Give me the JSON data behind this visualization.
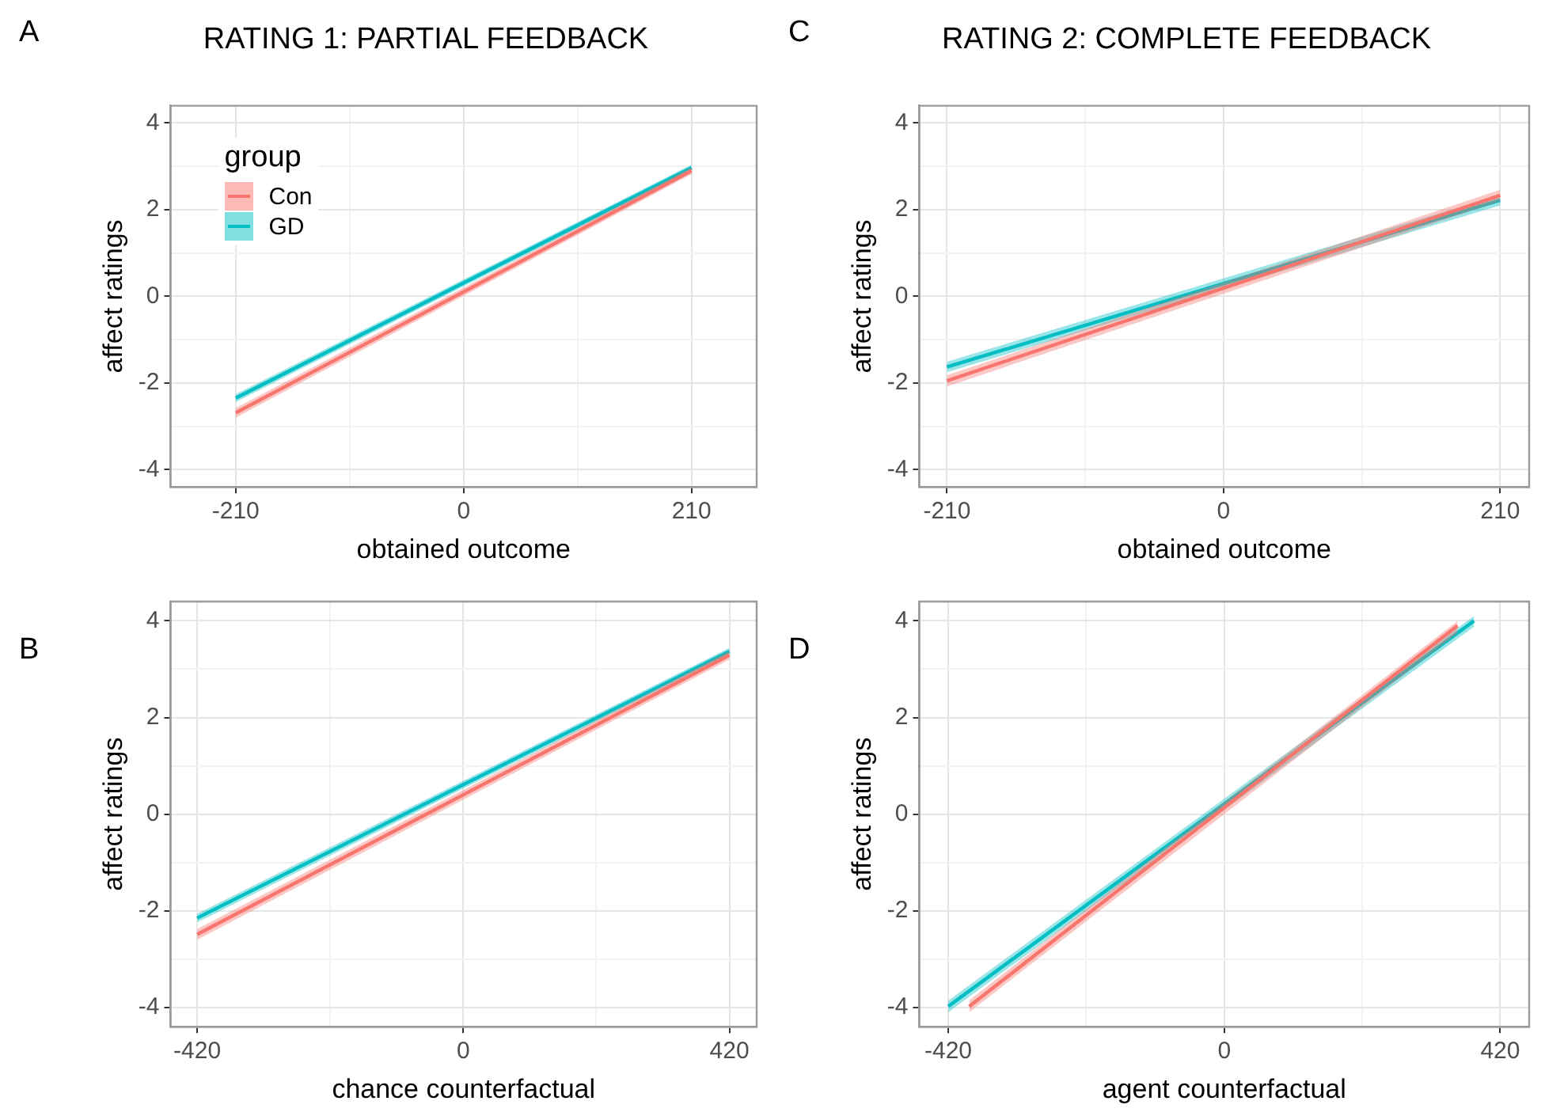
{
  "chart_data": [
    {
      "type": "line",
      "title": "RATING 1: PARTIAL FEEDBACK",
      "annotations": [
        "A"
      ],
      "xlabel": "obtained outcome",
      "ylabel": "affect ratings",
      "legend_title": "group",
      "legend": "top left",
      "marker": "none",
      "grid": true,
      "xlim": [
        -270,
        270
      ],
      "xticks": [
        -210,
        {
          "value": -105,
          "label": null
        },
        0,
        {
          "value": 105,
          "label": null
        },
        210
      ],
      "ylim": [
        -4.4,
        4.4
      ],
      "yticks": [
        -4,
        {
          "value": -3,
          "label": null
        },
        -2,
        {
          "value": -1,
          "label": null
        },
        0,
        {
          "value": 1,
          "label": null
        },
        2,
        {
          "value": 3,
          "label": null
        },
        4
      ],
      "series": [
        {
          "name": "Con",
          "color": "#f8766d",
          "x": [
            -210,
            210
          ],
          "values": [
            -2.69,
            2.9
          ],
          "lower": [
            -2.8,
            2.82
          ],
          "upper": [
            -2.58,
            2.98
          ]
        },
        {
          "name": "GD",
          "color": "#00bfc4",
          "x": [
            -210,
            210
          ],
          "values": [
            -2.35,
            2.97
          ],
          "lower": [
            -2.44,
            2.9
          ],
          "upper": [
            -2.26,
            3.04
          ]
        }
      ]
    },
    {
      "type": "line",
      "title": "RATING 2: COMPLETE FEEDBACK",
      "annotations": [
        "C"
      ],
      "xlabel": "obtained outcome",
      "ylabel": "affect ratings",
      "marker": "none",
      "grid": true,
      "xlim": [
        -231,
        232
      ],
      "xticks": [
        -210,
        {
          "value": -105,
          "label": null
        },
        0,
        {
          "value": 105,
          "label": null
        },
        210
      ],
      "ylim": [
        -4.4,
        4.4
      ],
      "yticks": [
        -4,
        {
          "value": -3,
          "label": null
        },
        -2,
        {
          "value": -1,
          "label": null
        },
        0,
        {
          "value": 1,
          "label": null
        },
        2,
        {
          "value": 3,
          "label": null
        },
        4
      ],
      "series": [
        {
          "color": "#f8766d",
          "x": [
            -210,
            210
          ],
          "values": [
            -1.95,
            2.33
          ],
          "lower": [
            -2.08,
            2.2
          ],
          "upper": [
            -1.82,
            2.46
          ]
        },
        {
          "color": "#00bfc4",
          "x": [
            -210,
            210
          ],
          "values": [
            -1.63,
            2.22
          ],
          "lower": [
            -1.75,
            2.1
          ],
          "upper": [
            -1.51,
            2.34
          ]
        }
      ]
    },
    {
      "type": "line",
      "annotations": [
        "B"
      ],
      "xlabel": "chance counterfactual",
      "ylabel": "affect ratings",
      "marker": "none",
      "grid": true,
      "xlim": [
        -462,
        463
      ],
      "xticks": [
        -420,
        {
          "value": -210,
          "label": null
        },
        0,
        {
          "value": 210,
          "label": null
        },
        420
      ],
      "ylim": [
        -4.4,
        4.4
      ],
      "yticks": [
        -4,
        {
          "value": -3,
          "label": null
        },
        -2,
        {
          "value": -1,
          "label": null
        },
        0,
        {
          "value": 1,
          "label": null
        },
        2,
        {
          "value": 3,
          "label": null
        },
        4
      ],
      "series": [
        {
          "color": "#f8766d",
          "x": [
            -420,
            420
          ],
          "values": [
            -2.49,
            3.29
          ],
          "lower": [
            -2.6,
            3.2
          ],
          "upper": [
            -2.38,
            3.38
          ]
        },
        {
          "color": "#00bfc4",
          "x": [
            -420,
            420
          ],
          "values": [
            -2.15,
            3.37
          ],
          "lower": [
            -2.24,
            3.3
          ],
          "upper": [
            -2.06,
            3.44
          ]
        }
      ]
    },
    {
      "type": "line",
      "annotations": [
        "D"
      ],
      "xlabel": "agent counterfactual",
      "ylabel": "affect ratings",
      "marker": "none",
      "grid": true,
      "xlim": [
        -464,
        464
      ],
      "xticks": [
        -420,
        {
          "value": -210,
          "label": null
        },
        0,
        {
          "value": 210,
          "label": null
        },
        420
      ],
      "ylim": [
        -4.4,
        4.4
      ],
      "yticks": [
        -4,
        {
          "value": -3,
          "label": null
        },
        -2,
        {
          "value": -1,
          "label": null
        },
        0,
        {
          "value": 1,
          "label": null
        },
        2,
        {
          "value": 3,
          "label": null
        },
        4
      ],
      "series": [
        {
          "color": "#f8766d",
          "x": [
            -388,
            355
          ],
          "values": [
            -3.98,
            3.9
          ],
          "lower": [
            -4.1,
            3.75
          ],
          "upper": [
            -3.85,
            4.0
          ]
        },
        {
          "color": "#00bfc4",
          "x": [
            -420,
            380
          ],
          "values": [
            -3.98,
            4.0
          ],
          "lower": [
            -4.1,
            3.88
          ],
          "upper": [
            -3.86,
            4.1
          ]
        }
      ]
    }
  ]
}
